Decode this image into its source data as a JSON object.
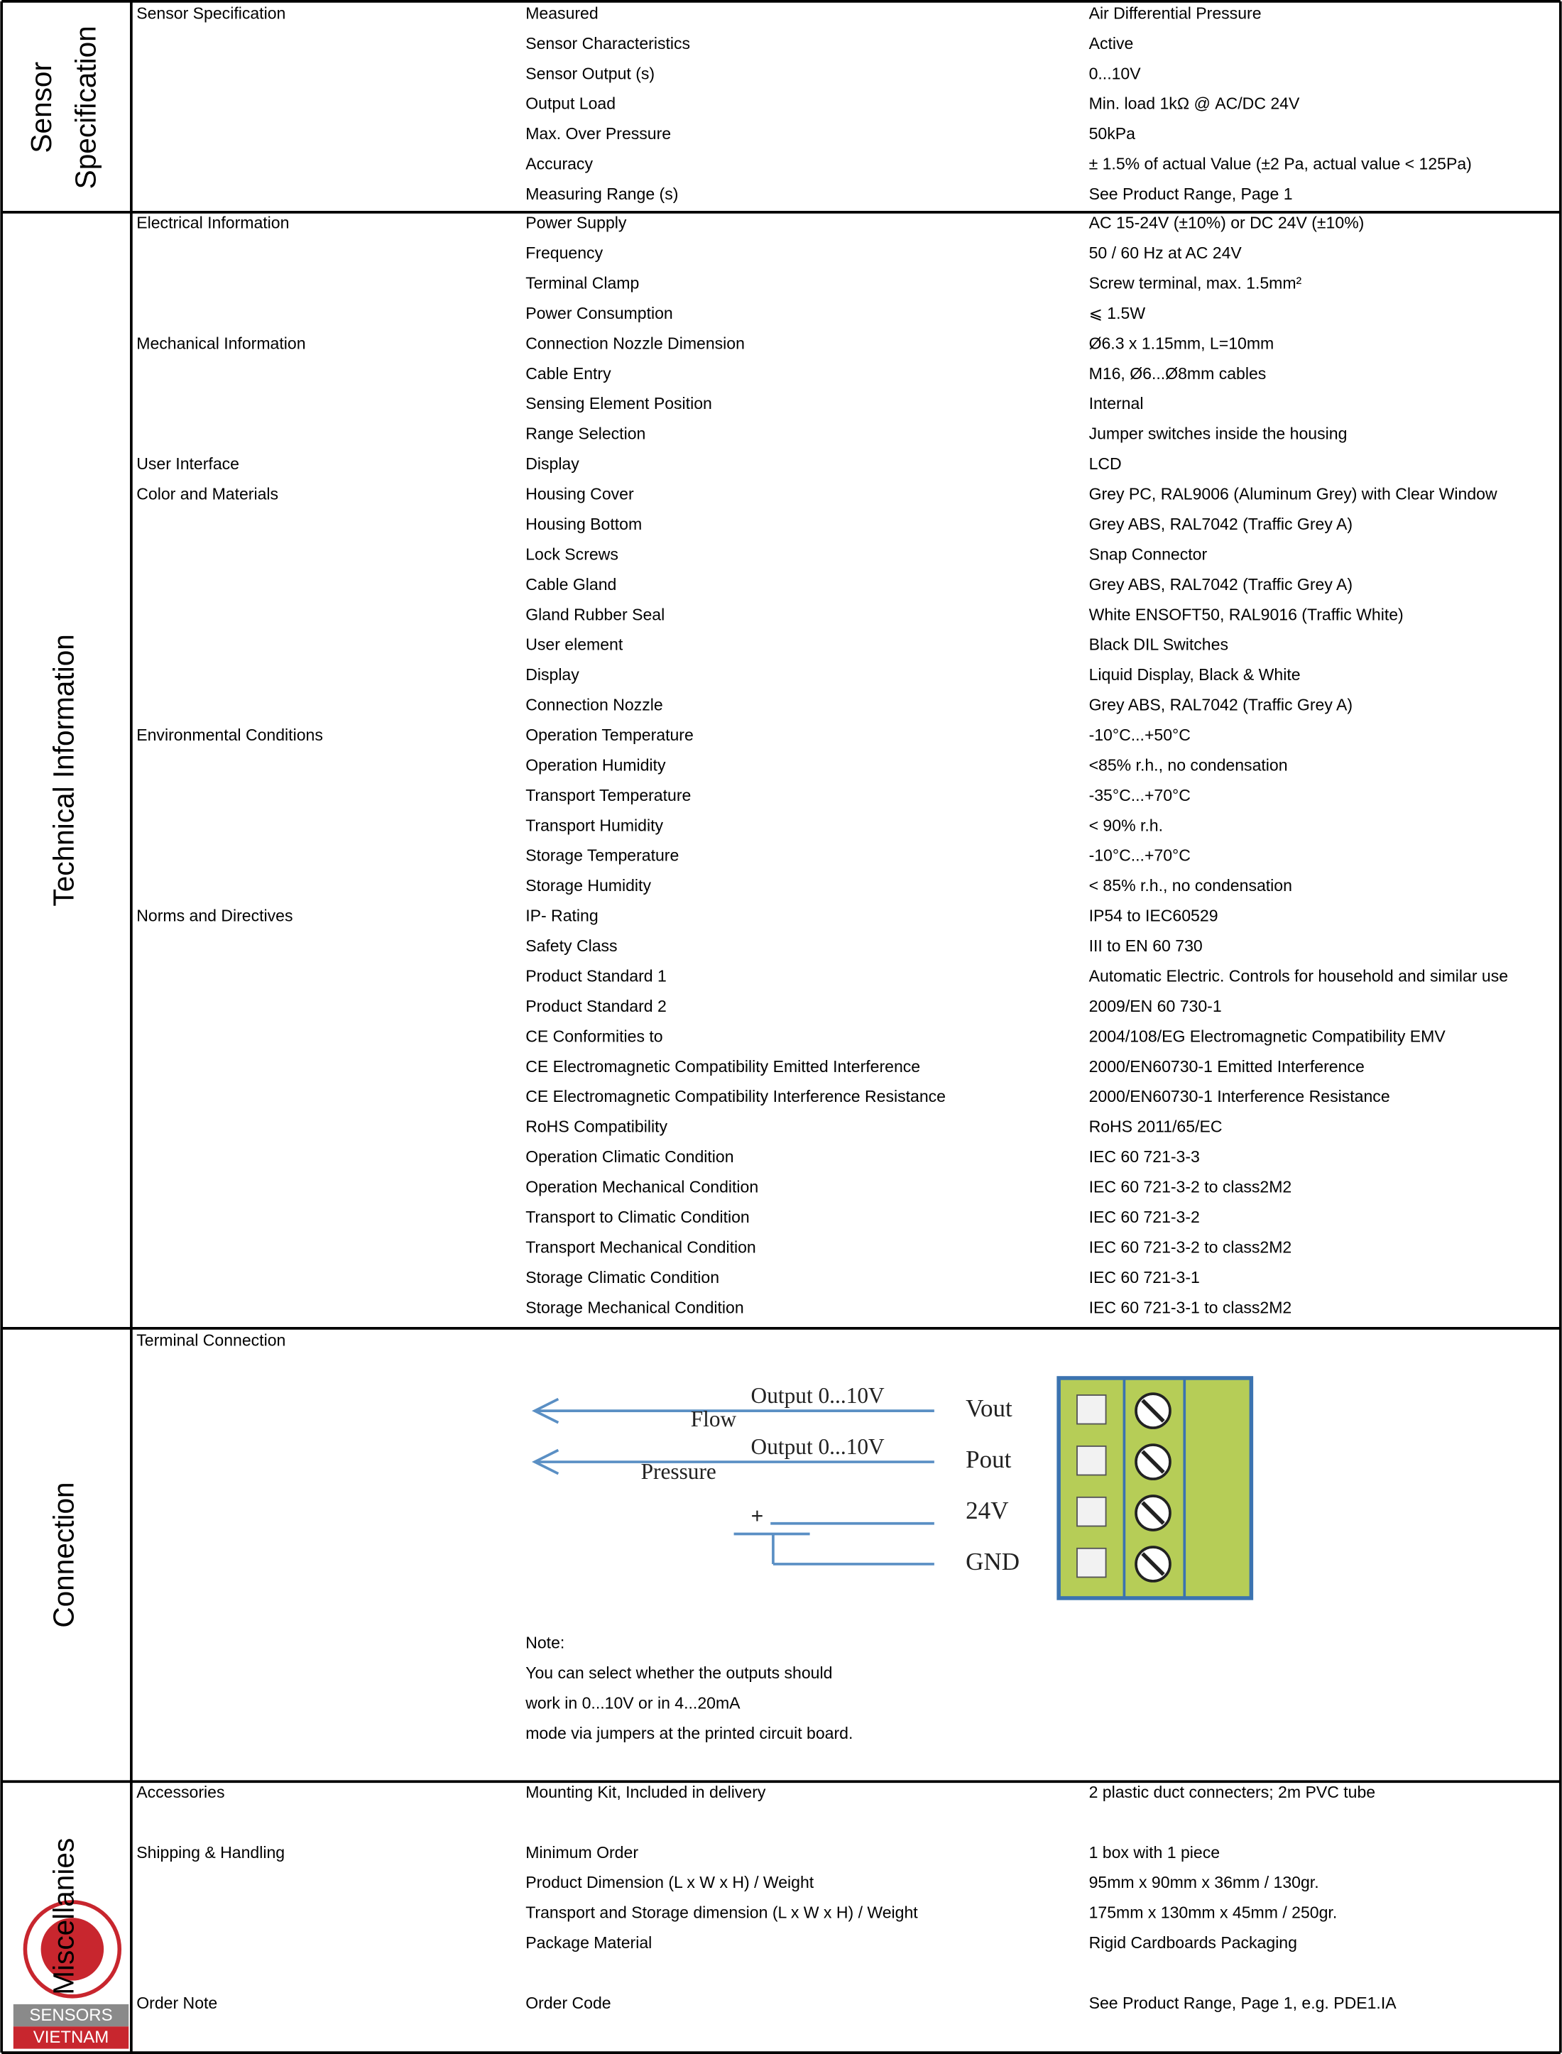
{
  "sections": [
    {
      "title": [
        "Sensor",
        "Specification"
      ],
      "rows": [
        {
          "group": "Sensor Specification",
          "param": "Measured",
          "value": "Air Differential Pressure"
        },
        {
          "param": "Sensor Characteristics",
          "value": "Active"
        },
        {
          "param": "Sensor Output (s)",
          "value": "0...10V"
        },
        {
          "param": "Output Load",
          "value": "Min. load 1kΩ @ AC/DC 24V"
        },
        {
          "param": "Max. Over Pressure",
          "value": "50kPa"
        },
        {
          "param": "Accuracy",
          "value": "± 1.5% of actual Value (±2 Pa, actual value < 125Pa)"
        },
        {
          "param": "Measuring Range (s)",
          "value": "See Product Range, Page 1"
        }
      ]
    },
    {
      "title": [
        "Technical Information"
      ],
      "rows": [
        {
          "group": "Electrical Information",
          "param": "Power Supply",
          "value": "AC 15-24V (±10%) or DC 24V (±10%)"
        },
        {
          "param": "Frequency",
          "value": "50 / 60 Hz at AC 24V"
        },
        {
          "param": "Terminal Clamp",
          "value": "Screw terminal, max. 1.5mm²"
        },
        {
          "param": "Power Consumption",
          "value": "⩽ 1.5W"
        },
        {
          "group": "Mechanical Information",
          "param": "Connection Nozzle Dimension",
          "value": "Ø6.3 x 1.15mm, L=10mm"
        },
        {
          "param": "Cable Entry",
          "value": "M16, Ø6...Ø8mm cables"
        },
        {
          "param": "Sensing Element Position",
          "value": "Internal"
        },
        {
          "param": "Range Selection",
          "value": "Jumper switches inside the housing"
        },
        {
          "group": "User Interface",
          "param": "Display",
          "value": "LCD"
        },
        {
          "group": "Color and Materials",
          "param": "Housing Cover",
          "value": "Grey PC, RAL9006 (Aluminum Grey) with Clear Window"
        },
        {
          "param": "Housing Bottom",
          "value": "Grey ABS, RAL7042 (Traffic Grey A)"
        },
        {
          "param": "Lock Screws",
          "value": "Snap Connector"
        },
        {
          "param": "Cable Gland",
          "value": "Grey ABS, RAL7042 (Traffic Grey A)"
        },
        {
          "param": "Gland Rubber Seal",
          "value": "White ENSOFT50, RAL9016 (Traffic White)"
        },
        {
          "param": "User element",
          "value": "Black DIL Switches"
        },
        {
          "param": "Display",
          "value": "Liquid Display, Black & White"
        },
        {
          "param": "Connection Nozzle",
          "value": "Grey ABS, RAL7042 (Traffic Grey A)"
        },
        {
          "group": "Environmental Conditions",
          "param": "Operation Temperature",
          "value": "-10°C...+50°C"
        },
        {
          "param": "Operation Humidity",
          "value": "<85% r.h., no condensation"
        },
        {
          "param": "Transport Temperature",
          "value": "-35°C...+70°C"
        },
        {
          "param": "Transport Humidity",
          "value": "< 90% r.h."
        },
        {
          "param": "Storage Temperature",
          "value": "-10°C...+70°C"
        },
        {
          "param": "Storage Humidity",
          "value": "< 85% r.h., no condensation"
        },
        {
          "group": "Norms and Directives",
          "param": "IP- Rating",
          "value": "IP54 to IEC60529"
        },
        {
          "param": "Safety Class",
          "value": "III to EN 60 730"
        },
        {
          "param": "Product Standard 1",
          "value": "Automatic Electric. Controls for household and similar use"
        },
        {
          "param": "Product Standard 2",
          "value": "2009/EN 60 730-1"
        },
        {
          "param": "CE Conformities to",
          "value": "2004/108/EG Electromagnetic Compatibility EMV"
        },
        {
          "param": "CE  Electromagnetic Compatibility  Emitted Interference",
          "value": "2000/EN60730-1 Emitted Interference"
        },
        {
          "param": "CE  Electromagnetic Compatibility Interference Resistance",
          "value": "2000/EN60730-1 Interference Resistance"
        },
        {
          "param": "RoHS Compatibility",
          "value": "RoHS 2011/65/EC"
        },
        {
          "param": "Operation Climatic Condition",
          "value": "IEC 60 721-3-3"
        },
        {
          "param": "Operation Mechanical Condition",
          "value": "IEC 60 721-3-2 to class2M2"
        },
        {
          "param": "Transport to Climatic Condition",
          "value": "IEC 60 721-3-2"
        },
        {
          "param": "Transport Mechanical Condition",
          "value": "IEC 60 721-3-2 to class2M2"
        },
        {
          "param": "Storage Climatic Condition",
          "value": "IEC 60 721-3-1"
        },
        {
          "param": "Storage Mechanical Condition",
          "value": "IEC 60 721-3-1 to class2M2"
        }
      ]
    },
    {
      "title": [
        "Connection"
      ],
      "group": "Terminal Connection",
      "diagram": {
        "outputs": [
          "Output 0...10V",
          "Output 0...10V"
        ],
        "signals": [
          "Flow",
          "Pressure"
        ],
        "plus": "+",
        "terminals": [
          "Vout",
          "Pout",
          "24V",
          "GND"
        ]
      },
      "note": [
        "Note:",
        "You can select whether the outputs should",
        "work in 0...10V or in 4...20mA",
        "mode via jumpers at the printed circuit board."
      ]
    },
    {
      "title": [
        "Miscellanies"
      ],
      "rows": [
        {
          "group": "Accessories",
          "param": "Mounting Kit, Included in delivery",
          "value": "2 plastic duct connecters; 2m PVC tube"
        },
        {
          "group": "Shipping & Handling",
          "param": "Minimum Order",
          "value": "1 box with 1 piece"
        },
        {
          "param": "Product Dimension (L x W x H) / Weight",
          "value": "95mm x 90mm x 36mm / 130gr."
        },
        {
          "param": "Transport and Storage dimension (L x W x H) / Weight",
          "value": "175mm x 130mm x 45mm / 250gr."
        },
        {
          "param": "Package Material",
          "value": "Rigid Cardboards Packaging"
        },
        {
          "group": "Order Note",
          "param": "Order Code",
          "value": "See Product Range, Page 1, e.g. PDE1.IA"
        }
      ]
    }
  ],
  "logo": {
    "line1": "SENSORS",
    "line2": "VIETNAM"
  }
}
